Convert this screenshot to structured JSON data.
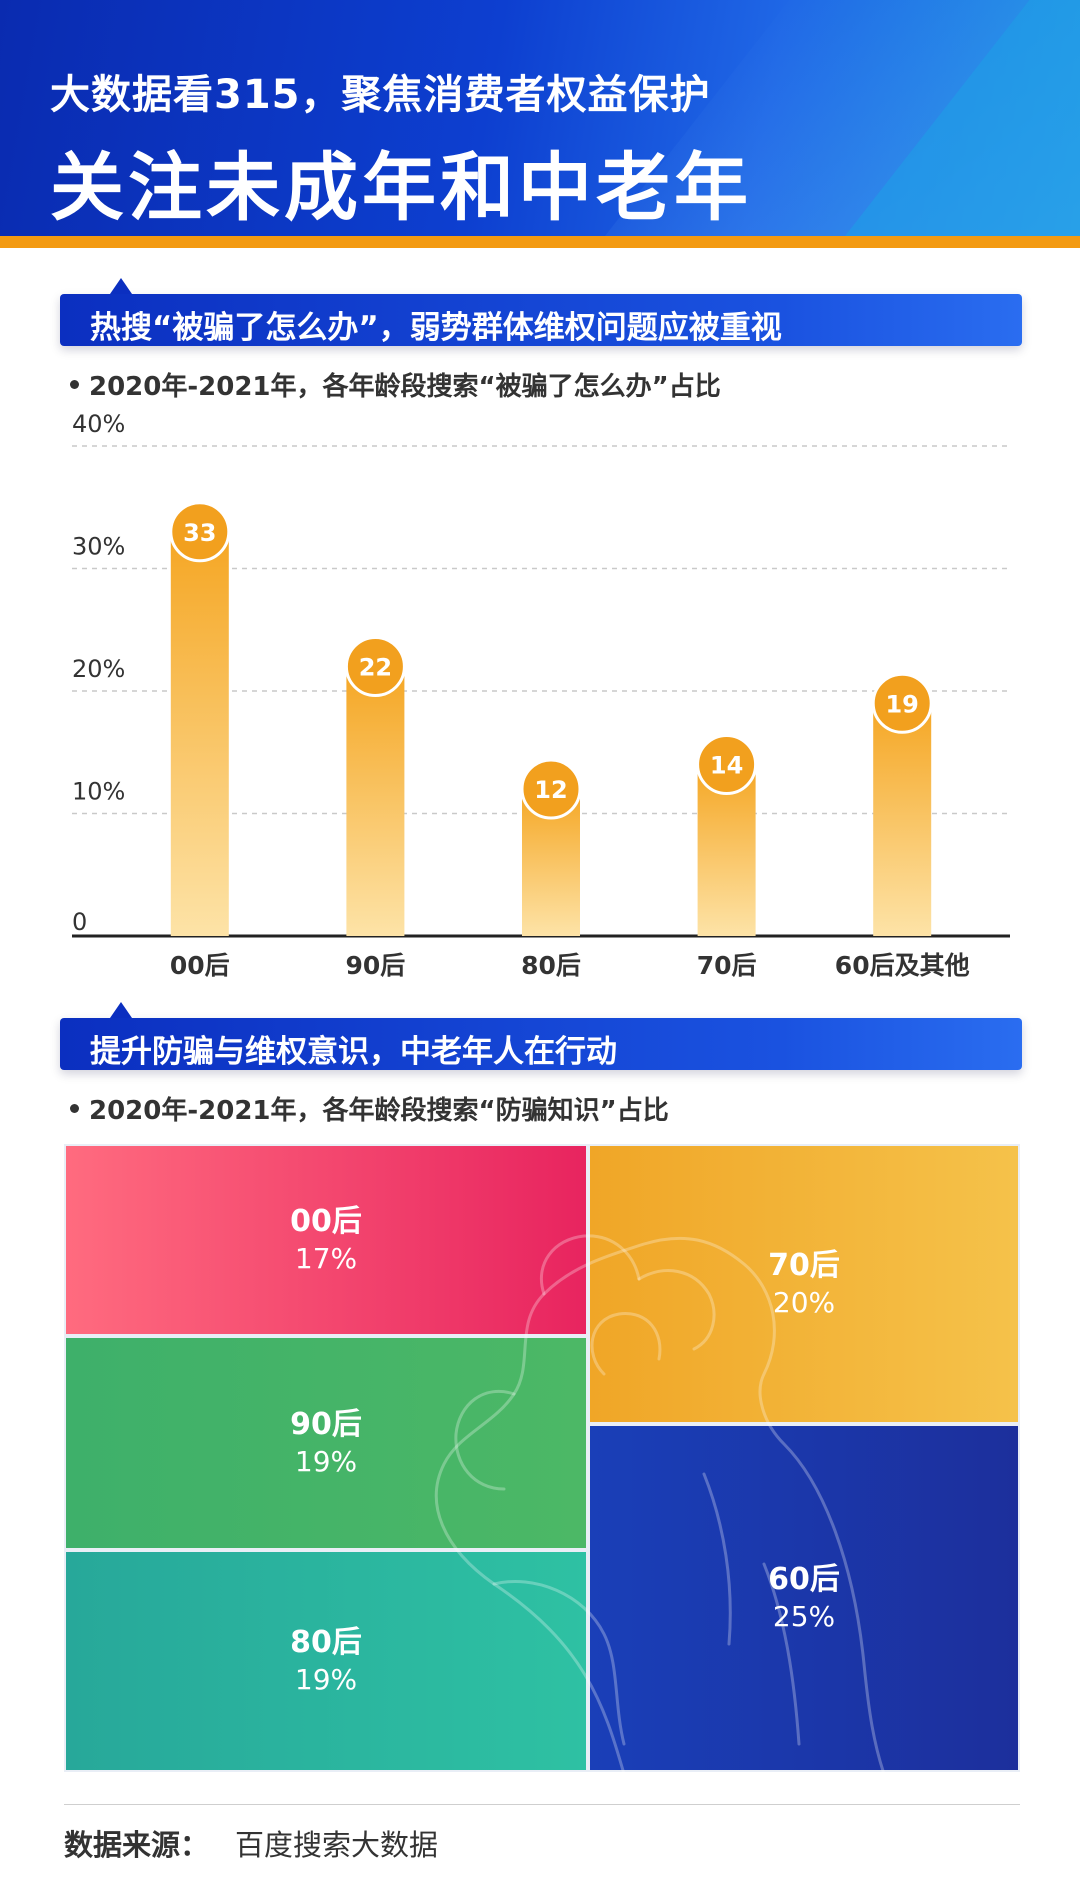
{
  "header": {
    "subtitle": "大数据看315，聚焦消费者权益保护",
    "title": "关注未成年和中老年"
  },
  "section1": {
    "banner": "热搜“被骗了怎么办”，弱势群体维权问题应被重视",
    "subhead": "2020年-2021年，各年龄段搜索“被骗了怎么办”占比"
  },
  "section2": {
    "banner": "提升防骗与维权意识，中老年人在行动",
    "subhead": "2020年-2021年，各年龄段搜索“防骗知识”占比"
  },
  "chart_data": [
    {
      "type": "bar",
      "categories": [
        "00后",
        "90后",
        "80后",
        "70后",
        "60后及其他"
      ],
      "values": [
        33,
        22,
        12,
        14,
        19
      ],
      "value_labels": [
        "33",
        "22",
        "12",
        "14",
        "19"
      ],
      "ylim": [
        0,
        40
      ],
      "yticks": [
        0,
        10,
        20,
        30,
        40
      ],
      "ytick_labels": [
        "0",
        "10%",
        "20%",
        "30%",
        "40%"
      ],
      "grid": true,
      "colors": {
        "bar_top": "#f5a623",
        "bar_bottom": "#fde3a7",
        "label_circle": "#f2a01e"
      }
    },
    {
      "type": "treemap",
      "items": [
        {
          "name": "00后",
          "value": 17,
          "label": "17%",
          "color_start": "#ff6b7f",
          "color_end": "#e8245f"
        },
        {
          "name": "90后",
          "value": 19,
          "label": "19%",
          "color_start": "#3eb06a",
          "color_end": "#4cb866"
        },
        {
          "name": "80后",
          "value": 19,
          "label": "19%",
          "color_start": "#27a89a",
          "color_end": "#2ec1a3"
        },
        {
          "name": "70后",
          "value": 20,
          "label": "20%",
          "color_start": "#f0a627",
          "color_end": "#f5c24a"
        },
        {
          "name": "60后",
          "value": 25,
          "label": "25%",
          "color_start": "#1a3fb8",
          "color_end": "#1c2f9c"
        }
      ]
    }
  ],
  "footer": {
    "label": "数据来源：",
    "source": "百度搜索大数据"
  }
}
